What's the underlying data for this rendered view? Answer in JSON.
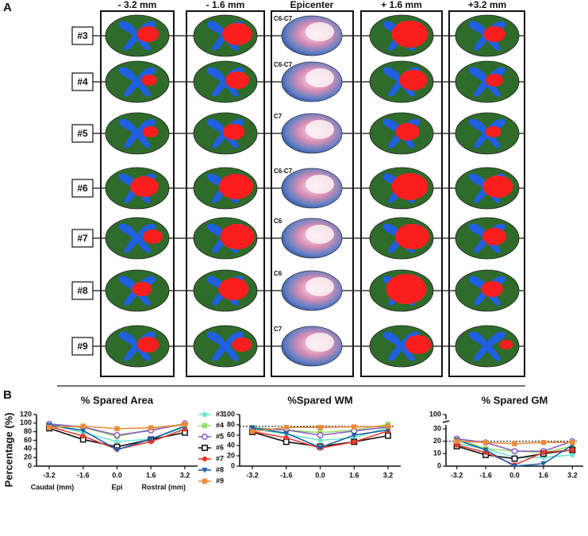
{
  "panel_labels": [
    "A",
    "B"
  ],
  "panel_a": {
    "columns": [
      "- 3.2 mm",
      "- 1.6 mm",
      "Epicenter",
      "+ 1.6 mm",
      "+3.2 mm"
    ],
    "rows": [
      "#3",
      "#4",
      "#5",
      "#6",
      "#7",
      "#8",
      "#9"
    ],
    "epicenter_levels": [
      "C6-C7",
      "C6-C7",
      "C7",
      "C6-C7",
      "C6",
      "C6",
      "C7"
    ]
  },
  "chart_data": [
    {
      "type": "line",
      "title": "% Spared Area",
      "y_label": "Percentage (%)",
      "x_annotations": [
        "Caudal (mm)",
        "Epi",
        "Rostral (mm)"
      ],
      "x": [
        -3.2,
        -1.6,
        0,
        1.6,
        3.2
      ],
      "xlim": [
        -3.8,
        3.8
      ],
      "xticks": [
        -3.2,
        -1.6,
        {
          "value": 0,
          "label": "0.0"
        },
        1.6,
        3.2
      ],
      "ylim": [
        0,
        120
      ],
      "yticks": [
        0,
        20,
        40,
        60,
        80,
        100,
        120
      ],
      "series": [
        {
          "name": "#3",
          "color": "#6fe6cf",
          "marker": "circle",
          "values": [
            97,
            78,
            57,
            63,
            90
          ]
        },
        {
          "name": "#4",
          "color": "#96e065",
          "marker": "square",
          "values": [
            95,
            90,
            69,
            85,
            96
          ]
        },
        {
          "name": "#5",
          "color": "#8a5cc8",
          "marker": "circle-open",
          "values": [
            98,
            91,
            72,
            83,
            99
          ]
        },
        {
          "name": "#6",
          "color": "#111111",
          "marker": "square-open",
          "values": [
            88,
            62,
            45,
            62,
            78
          ]
        },
        {
          "name": "#7",
          "color": "#e8392d",
          "marker": "circle",
          "values": [
            92,
            70,
            39,
            57,
            86
          ]
        },
        {
          "name": "#8",
          "color": "#1f5fa8",
          "marker": "triangle-down",
          "values": [
            95,
            83,
            38,
            63,
            93
          ]
        },
        {
          "name": "#9",
          "color": "#f08c3c",
          "marker": "square",
          "values": [
            90,
            93,
            87,
            89,
            97
          ]
        }
      ]
    },
    {
      "type": "line",
      "title": "%Spared WM",
      "x": [
        -3.2,
        -1.6,
        0,
        1.6,
        3.2
      ],
      "xlim": [
        -3.8,
        3.8
      ],
      "xticks": [
        -3.2,
        -1.6,
        {
          "value": 0,
          "label": "0.0"
        },
        1.6,
        3.2
      ],
      "ylim": [
        0,
        100
      ],
      "yticks": [
        0,
        20,
        40,
        60,
        80,
        100
      ],
      "reference_line": 77,
      "series": [
        {
          "color": "#6fe6cf",
          "marker": "circle",
          "values": [
            72,
            62,
            50,
            55,
            75
          ]
        },
        {
          "color": "#96e065",
          "marker": "square",
          "values": [
            75,
            70,
            65,
            70,
            81
          ]
        },
        {
          "color": "#8a5cc8",
          "marker": "circle-open",
          "values": [
            73,
            70,
            60,
            68,
            76
          ]
        },
        {
          "color": "#111111",
          "marker": "square-open",
          "values": [
            66,
            47,
            38,
            47,
            59
          ]
        },
        {
          "color": "#e8392d",
          "marker": "circle",
          "values": [
            67,
            55,
            35,
            47,
            68
          ]
        },
        {
          "color": "#1f5fa8",
          "marker": "triangle-down",
          "values": [
            74,
            64,
            36,
            60,
            70
          ]
        },
        {
          "color": "#f08c3c",
          "marker": "square",
          "values": [
            67,
            75,
            75,
            76,
            77
          ]
        }
      ]
    },
    {
      "type": "line",
      "title": "% Spared GM",
      "x": [
        -3.2,
        -1.6,
        0,
        1.6,
        3.2
      ],
      "xlim": [
        -3.8,
        3.8
      ],
      "xticks": [
        -3.2,
        -1.6,
        {
          "value": 0,
          "label": "0.0"
        },
        1.6,
        3.2
      ],
      "ylim": [
        0,
        100
      ],
      "ybreak": [
        30,
        100
      ],
      "yticks": [
        0,
        10,
        20,
        30,
        100
      ],
      "reference_line": 20,
      "series": [
        {
          "color": "#6fe6cf",
          "marker": "circle",
          "values": [
            18,
            14,
            7,
            7,
            9
          ]
        },
        {
          "color": "#96e065",
          "marker": "square",
          "values": [
            22,
            14,
            12,
            11,
            16
          ]
        },
        {
          "color": "#8a5cc8",
          "marker": "circle-open",
          "values": [
            22,
            19,
            12,
            12,
            20
          ]
        },
        {
          "color": "#111111",
          "marker": "square-open",
          "values": [
            16,
            9,
            6,
            10,
            13
          ]
        },
        {
          "color": "#e8392d",
          "marker": "circle",
          "values": [
            17,
            11,
            1,
            11,
            13
          ]
        },
        {
          "color": "#1f5fa8",
          "marker": "triangle-down",
          "values": [
            21,
            13,
            0,
            2,
            17
          ]
        },
        {
          "color": "#f08c3c",
          "marker": "square",
          "values": [
            20,
            19,
            18,
            19,
            19
          ]
        }
      ]
    }
  ]
}
